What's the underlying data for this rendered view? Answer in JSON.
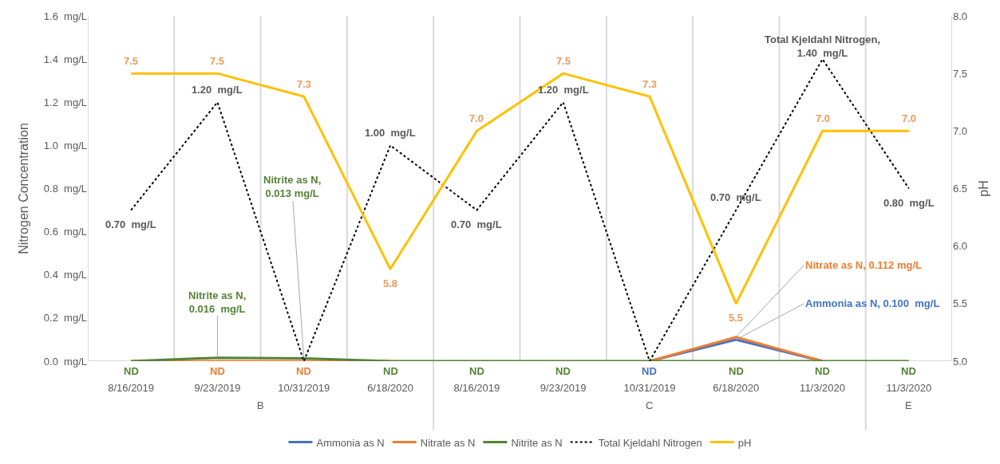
{
  "chart_data": {
    "type": "line",
    "categories": [
      "8/16/2019",
      "9/23/2019",
      "10/31/2019",
      "6/18/2020",
      "8/16/2019",
      "9/23/2019",
      "10/31/2019",
      "6/18/2020",
      "11/3/2020",
      "11/3/2020"
    ],
    "ylabel": "Nitrogen Concentration",
    "y2label": "pH",
    "ylim": [
      0,
      1.6
    ],
    "yticks": [
      {
        "value": 0,
        "label": "0.0  mg/L"
      },
      {
        "value": 0.2,
        "label": "0.2  mg/L"
      },
      {
        "value": 0.4,
        "label": "0.4  mg/L"
      },
      {
        "value": 0.6,
        "label": "0.6  mg/L"
      },
      {
        "value": 0.8,
        "label": "0.8  mg/L"
      },
      {
        "value": 1.0,
        "label": "1.0  mg/L"
      },
      {
        "value": 1.2,
        "label": "1.2  mg/L"
      },
      {
        "value": 1.4,
        "label": "1.4  mg/L"
      },
      {
        "value": 1.6,
        "label": "1.6  mg/L"
      }
    ],
    "y2lim": [
      5,
      8
    ],
    "y2ticks": [
      {
        "value": 5,
        "label": "5.0"
      },
      {
        "value": 5.5,
        "label": "5.5"
      },
      {
        "value": 6,
        "label": "6.0"
      },
      {
        "value": 6.5,
        "label": "6.5"
      },
      {
        "value": 7,
        "label": "7.0"
      },
      {
        "value": 7.5,
        "label": "7.5"
      },
      {
        "value": 8,
        "label": "8.0"
      }
    ],
    "annotations": [
      "B",
      "C",
      "E"
    ],
    "grid": "x",
    "legend": "bottom",
    "marker": "none",
    "series": [
      {
        "name": "Ammonia as N",
        "color": "#4472c4",
        "line_style": "solid",
        "values": [
          null,
          null,
          null,
          null,
          null,
          null,
          0,
          0.1,
          0,
          null
        ],
        "value_labels": [
          null,
          null,
          null,
          null,
          null,
          null,
          "ND",
          "Ammonia as N, 0.100  mg/L",
          null,
          null
        ]
      },
      {
        "name": "Nitrate as N",
        "color": "#ed7d31",
        "line_style": "solid",
        "values": [
          0,
          0,
          0,
          0,
          null,
          null,
          0,
          0.112,
          0,
          null
        ],
        "value_labels": [
          null,
          "ND",
          "ND",
          null,
          null,
          null,
          null,
          "Nitrate as N, 0.112 mg/L",
          null,
          null
        ]
      },
      {
        "name": "Nitrite as N",
        "color": "#548235",
        "line_style": "solid",
        "values": [
          0,
          0.016,
          0.013,
          0,
          0,
          0,
          0,
          0,
          0,
          0
        ],
        "value_labels": [
          "ND",
          "Nitrite as N,\n0.016  mg/L",
          "Nitrite as N,\n0.013 mg/L",
          "ND",
          "ND",
          "ND",
          null,
          "ND",
          "ND",
          "ND"
        ]
      },
      {
        "name": "Total Kjeldahl Nitrogen",
        "color": "#000000",
        "line_style": "dotted",
        "values": [
          0.7,
          1.2,
          0,
          1.0,
          0.7,
          1.2,
          0,
          0.7,
          1.4,
          0.8
        ],
        "value_labels": [
          "0.70  mg/L",
          "1.20  mg/L",
          null,
          "1.00  mg/L",
          "0.70  mg/L",
          "1.20  mg/L",
          null,
          "0.70  mg/L",
          "Total Kjeldahl Nitrogen,\n1.40  mg/L",
          "0.80  mg/L"
        ]
      },
      {
        "name": "pH",
        "color": "#ffc000",
        "line_style": "solid",
        "axis": "y2",
        "values": [
          7.5,
          7.5,
          7.3,
          5.8,
          7.0,
          7.5,
          7.3,
          5.5,
          7.0,
          7.0
        ],
        "value_labels": [
          "7.5",
          "7.5",
          "7.3",
          "5.8",
          "7.0",
          "7.5",
          "7.3",
          "5.5",
          "7.0",
          "7.0"
        ]
      }
    ]
  }
}
